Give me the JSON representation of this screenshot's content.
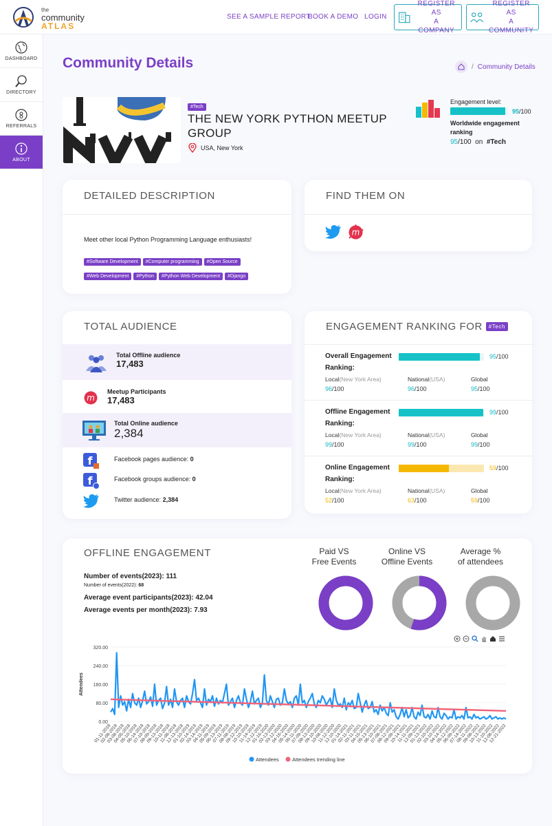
{
  "brand": {
    "line1": "the",
    "line2": "community",
    "line3": "ATLAS"
  },
  "nav": {
    "sample_report": "SEE A SAMPLE REPORT",
    "book_demo": "BOOK A DEMO",
    "login": "LOGIN",
    "register_company": [
      "REGISTER AS",
      "A COMPANY"
    ],
    "register_community": [
      "REGISTER AS",
      "A COMMUNITY"
    ]
  },
  "sidebar": {
    "items": [
      {
        "label": "DASHBOARD",
        "icon": "globe-icon"
      },
      {
        "label": "DIRECTORY",
        "icon": "magnifier-icon"
      },
      {
        "label": "REFERRALS",
        "icon": "referral-icon"
      },
      {
        "label": "ABOUT",
        "icon": "info-icon",
        "active": true
      }
    ]
  },
  "page": {
    "title": "Community Details",
    "breadcrumb": "Community Details"
  },
  "community": {
    "tag": "#Tech",
    "name": "THE NEW YORK PYTHON MEETUP GROUP",
    "location": "USA, New York"
  },
  "engagement_summary": {
    "label": "Engagement level:",
    "score": 95,
    "max": "/100",
    "worldwide_label": "Worldwide engagement ranking",
    "worldwide_score": 95,
    "worldwide_max": "/100",
    "on": "on",
    "tag": "#Tech"
  },
  "description": {
    "title": "DETAILED DESCRIPTION",
    "text": "Meet other local Python Programming Language enthusiasts!",
    "tags": [
      "#Software Development",
      "#Computer programming",
      "#Open Source",
      "#Web Development",
      "#Python",
      "#Python Web Development",
      "#Django"
    ]
  },
  "find_them": {
    "title": "FIND THEM ON",
    "icons": [
      "twitter-icon",
      "meetup-icon"
    ]
  },
  "audience": {
    "title": "TOTAL AUDIENCE",
    "offline_label": "Total Offline audience",
    "offline_value": "17,483",
    "meetup_label": "Meetup Participants",
    "meetup_value": "17,483",
    "online_label": "Total Online audience",
    "online_value": "2,384",
    "fb_pages_label": "Facebook pages audience:",
    "fb_pages_value": "0",
    "fb_groups_label": "Facebook groups audience:",
    "fb_groups_value": "0",
    "twitter_label": "Twitter audience:",
    "twitter_value": "2,384"
  },
  "ranking": {
    "title": "ENGAGEMENT RANKING FOR",
    "tag": "#Tech",
    "ranking_word": "Ranking:",
    "local_label": "Local",
    "local_area": "(New York Area)",
    "national_label": "National",
    "national_area": "(USA)",
    "global_label": "Global",
    "max": "/100",
    "blocks": [
      {
        "title": "Overall Engagement",
        "score": 95,
        "local": 96,
        "national": 96,
        "global": 95,
        "color": "#16c2c8",
        "track": "#e6f7f8"
      },
      {
        "title": "Offline Engagement",
        "score": 99,
        "local": 99,
        "national": 99,
        "global": 99,
        "color": "#16c2c8",
        "track": "#e6f7f8"
      },
      {
        "title": "Online Engagement",
        "score": 59,
        "local": 52,
        "national": 63,
        "global": 59,
        "color": "#f5b800",
        "track": "#fbe7b0"
      }
    ]
  },
  "offline": {
    "title": "OFFLINE ENGAGEMENT",
    "events_label": "Number of events(2023):",
    "events_value": "111",
    "events_prev_label": "Number of events(2022):",
    "events_prev_value": "68",
    "avg_participants_label": "Average event participants(2023):",
    "avg_participants_value": "42.04",
    "avg_per_month_label": "Average events per month(2023):",
    "avg_per_month_value": "7.93",
    "donuts": [
      {
        "title": [
          "Paid VS",
          "Free Events"
        ],
        "fraction": 1.0,
        "color": "#7a3fc6",
        "rest": "#a8a8a8"
      },
      {
        "title": [
          "Online VS",
          "Offline Events"
        ],
        "fraction": 0.55,
        "color": "#7a3fc6",
        "rest": "#a8a8a8"
      },
      {
        "title": [
          "Average %",
          "of attendees"
        ],
        "fraction": 0.0,
        "color": "#7a3fc6",
        "rest": "#a8a8a8"
      }
    ]
  },
  "chart_data": {
    "type": "line",
    "ylabel": "Attendees",
    "ylim": [
      0,
      320
    ],
    "yticks": [
      "320.00",
      "240.00",
      "160.00",
      "80.00",
      "0.00"
    ],
    "xticks": [
      "01-11-2018",
      "02-08-2018",
      "03-08-2018",
      "04-05-2018",
      "05-10-2018",
      "06-14-2018",
      "07-10-2018",
      "08-09-2018",
      "09-13-2018",
      "10-11-2018",
      "11-08-2018",
      "12-13-2018",
      "01-10-2019",
      "02-14-2019",
      "03-14-2019",
      "04-11-2019",
      "05-09-2019",
      "06-13-2019",
      "07-11-2019",
      "08-08-2019",
      "09-12-2019",
      "10-10-2019",
      "11-14-2019",
      "12-12-2019",
      "01-16-2020",
      "02-13-2020",
      "03-12-2020",
      "04-16-2020",
      "05-14-2020",
      "06-11-2020",
      "07-09-2020",
      "08-13-2020",
      "09-10-2020",
      "10-08-2020",
      "11-12-2020",
      "12-10-2020",
      "01-14-2021",
      "02-11-2021",
      "03-11-2021",
      "04-15-2021",
      "05-13-2021",
      "06-10-2021",
      "07-08-2021",
      "08-12-2021",
      "09-09-2021",
      "10-14-2021",
      "11-11-2021",
      "12-09-2021",
      "01-13-2022",
      "02-10-2022",
      "03-10-2022",
      "04-14-2022",
      "05-12-2022",
      "06-09-2022",
      "07-14-2022",
      "08-11-2022",
      "09-08-2022",
      "10-13-2022",
      "11-10-2022",
      "12-08-2022",
      "12-21-2022"
    ],
    "series": [
      {
        "name": "Attendees",
        "color": "#2196f3",
        "values": [
          40,
          55,
          30,
          295,
          60,
          110,
          70,
          85,
          45,
          95,
          60,
          120,
          80,
          70,
          100,
          60,
          90,
          130,
          75,
          85,
          105,
          65,
          160,
          70,
          90,
          100,
          55,
          80,
          150,
          70,
          95,
          60,
          140,
          85,
          70,
          90,
          100,
          60,
          110,
          85,
          75,
          120,
          180,
          90,
          100,
          80,
          60,
          140,
          70,
          95,
          85,
          110,
          65,
          100,
          75,
          90,
          80,
          120,
          160,
          70,
          85,
          100,
          60,
          90,
          110,
          80,
          70,
          140,
          95,
          60,
          85,
          130,
          75,
          90,
          100,
          60,
          80,
          200,
          90,
          70,
          110,
          85,
          60,
          95,
          100,
          70,
          80,
          140,
          90,
          75,
          85,
          60,
          100,
          110,
          70,
          160,
          80,
          90,
          60,
          85,
          100,
          120,
          75,
          60,
          90,
          80,
          110,
          95,
          70,
          85,
          100,
          60,
          140,
          90,
          70,
          75,
          60,
          100,
          50,
          80,
          70,
          90,
          55,
          60,
          120,
          80,
          40,
          70,
          90,
          55,
          60,
          85,
          40,
          50,
          30,
          70,
          45,
          60,
          35,
          25,
          80,
          40,
          50,
          20,
          10,
          30,
          60,
          20,
          50,
          15,
          25,
          60,
          20,
          10,
          40,
          25,
          70,
          20,
          15,
          30,
          10,
          45,
          20,
          15,
          60,
          20,
          10,
          35,
          25,
          10,
          20,
          15,
          50,
          10,
          20,
          15,
          25,
          10,
          60,
          15,
          20,
          10,
          30,
          15,
          20,
          10,
          15,
          20,
          10,
          15,
          25,
          10,
          15,
          20,
          10,
          15,
          10,
          15,
          10
        ]
      },
      {
        "name": "Attendees trending line",
        "color": "#f0647a",
        "values": [
          95,
          45
        ]
      }
    ],
    "legend": "bottom-center"
  }
}
